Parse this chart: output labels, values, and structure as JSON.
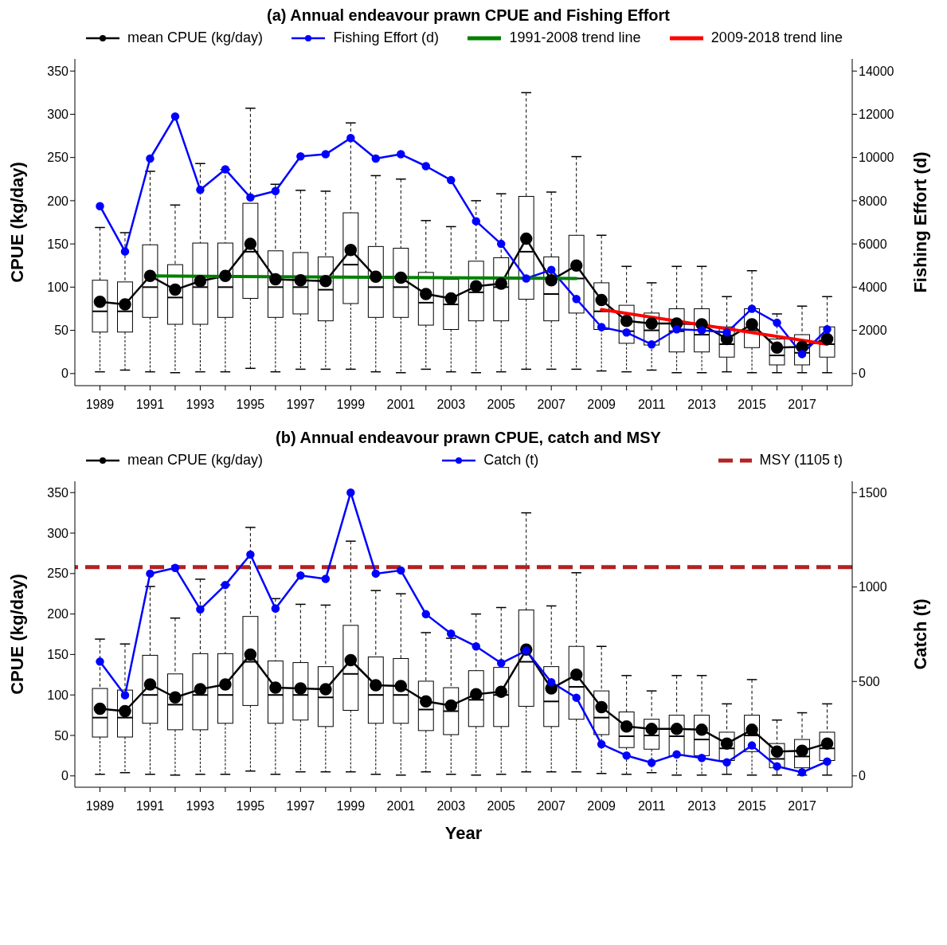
{
  "chart_data": [
    {
      "type": "box",
      "title": "(a) Annual endeavour prawn CPUE and Fishing Effort",
      "ylabel": "CPUE (kg/day)",
      "y2label": "Fishing Effort (d)",
      "x": [
        1989,
        1990,
        1991,
        1992,
        1993,
        1994,
        1995,
        1996,
        1997,
        1998,
        1999,
        2000,
        2001,
        2002,
        2003,
        2004,
        2005,
        2006,
        2007,
        2008,
        2009,
        2010,
        2011,
        2012,
        2013,
        2014,
        2015,
        2016,
        2017,
        2018
      ],
      "xlim": [
        1988,
        2019
      ],
      "xticks": [
        1989,
        {
          "value": 1990,
          "label": null
        },
        1991,
        {
          "value": 1992,
          "label": null
        },
        1993,
        {
          "value": 1994,
          "label": null
        },
        1995,
        {
          "value": 1996,
          "label": null
        },
        1997,
        {
          "value": 1998,
          "label": null
        },
        1999,
        {
          "value": 2000,
          "label": null
        },
        2001,
        {
          "value": 2002,
          "label": null
        },
        2003,
        {
          "value": 2004,
          "label": null
        },
        2005,
        {
          "value": 2006,
          "label": null
        },
        2007,
        {
          "value": 2008,
          "label": null
        },
        2009,
        {
          "value": 2010,
          "label": null
        },
        2011,
        {
          "value": 2012,
          "label": null
        },
        2013,
        {
          "value": 2014,
          "label": null
        },
        2015,
        {
          "value": 2016,
          "label": null
        },
        2017,
        {
          "value": 2018,
          "label": null
        }
      ],
      "ylim": [
        -14,
        364
      ],
      "yticks": [
        0,
        50,
        100,
        150,
        200,
        250,
        300,
        350
      ],
      "y2lim": [
        -560,
        14560
      ],
      "y2ticks": [
        0,
        2000,
        4000,
        6000,
        8000,
        10000,
        12000,
        14000
      ],
      "boxes": [
        {
          "low": 2,
          "q1": 48,
          "median": 72,
          "q3": 108,
          "high": 169
        },
        {
          "low": 4,
          "q1": 48,
          "median": 72,
          "q3": 106,
          "high": 163
        },
        {
          "low": 2,
          "q1": 65,
          "median": 100,
          "q3": 149,
          "high": 234
        },
        {
          "low": 1,
          "q1": 57,
          "median": 88,
          "q3": 126,
          "high": 195
        },
        {
          "low": 2,
          "q1": 57,
          "median": 100,
          "q3": 151,
          "high": 243
        },
        {
          "low": 2,
          "q1": 65,
          "median": 100,
          "q3": 151,
          "high": 236
        },
        {
          "low": 6,
          "q1": 87,
          "median": 141,
          "q3": 197,
          "high": 307
        },
        {
          "low": 2,
          "q1": 65,
          "median": 100,
          "q3": 142,
          "high": 219
        },
        {
          "low": 5,
          "q1": 69,
          "median": 100,
          "q3": 140,
          "high": 212
        },
        {
          "low": 5,
          "q1": 61,
          "median": 97,
          "q3": 135,
          "high": 211
        },
        {
          "low": 5,
          "q1": 81,
          "median": 126,
          "q3": 186,
          "high": 290
        },
        {
          "low": 2,
          "q1": 65,
          "median": 100,
          "q3": 147,
          "high": 229
        },
        {
          "low": 1,
          "q1": 65,
          "median": 100,
          "q3": 145,
          "high": 225
        },
        {
          "low": 5,
          "q1": 56,
          "median": 82,
          "q3": 117,
          "high": 177
        },
        {
          "low": 2,
          "q1": 51,
          "median": 80,
          "q3": 109,
          "high": 170
        },
        {
          "low": 1,
          "q1": 61,
          "median": 94,
          "q3": 130,
          "high": 200
        },
        {
          "low": 2,
          "q1": 61,
          "median": 100,
          "q3": 134,
          "high": 208
        },
        {
          "low": 5,
          "q1": 86,
          "median": 141,
          "q3": 205,
          "high": 325
        },
        {
          "low": 5,
          "q1": 61,
          "median": 92,
          "q3": 135,
          "high": 210
        },
        {
          "low": 5,
          "q1": 70,
          "median": 110,
          "q3": 160,
          "high": 251
        },
        {
          "low": 3,
          "q1": 51,
          "median": 72,
          "q3": 105,
          "high": 160
        },
        {
          "low": 2,
          "q1": 35,
          "median": 49,
          "q3": 79,
          "high": 124
        },
        {
          "low": 4,
          "q1": 33,
          "median": 50,
          "q3": 70,
          "high": 105
        },
        {
          "low": 1,
          "q1": 25,
          "median": 49,
          "q3": 75,
          "high": 124
        },
        {
          "low": 1,
          "q1": 25,
          "median": 45,
          "q3": 75,
          "high": 124
        },
        {
          "low": 2,
          "q1": 19,
          "median": 34,
          "q3": 54,
          "high": 89
        },
        {
          "low": 1,
          "q1": 30,
          "median": 50,
          "q3": 75,
          "high": 119
        },
        {
          "low": 1,
          "q1": 10,
          "median": 21,
          "q3": 40,
          "high": 69
        },
        {
          "low": 1,
          "q1": 10,
          "median": 24,
          "q3": 45,
          "high": 78
        },
        {
          "low": 1,
          "q1": 19,
          "median": 34,
          "q3": 54,
          "high": 89
        }
      ],
      "series": [
        {
          "name": "mean CPUE (kg/day)",
          "type": "line",
          "color": "#000000",
          "marker": "circle",
          "values": [
            83,
            80,
            113,
            97,
            107,
            113,
            150,
            109,
            108,
            107,
            143,
            112,
            111,
            92,
            87,
            101,
            104,
            156,
            108,
            125,
            85,
            61,
            58,
            58,
            57,
            40,
            57,
            30,
            31,
            40
          ]
        },
        {
          "name": "Fishing Effort (d)",
          "type": "line",
          "axis": "y2",
          "color": "#0000ff",
          "marker": "circle",
          "values": [
            7750,
            5650,
            9950,
            11900,
            8500,
            9450,
            8150,
            8450,
            10050,
            10150,
            10900,
            9950,
            10150,
            9600,
            8950,
            7050,
            6000,
            4400,
            4800,
            3450,
            2150,
            1900,
            1350,
            2050,
            2000,
            1900,
            3000,
            2350,
            900,
            2050
          ]
        },
        {
          "name": "1991-2008 trend line",
          "type": "line",
          "color": "#008000",
          "marker": "none",
          "x": [
            1991,
            2008
          ],
          "values": [
            113,
            110
          ]
        },
        {
          "name": "2009-2018 trend line",
          "type": "line",
          "color": "#ff0000",
          "marker": "none",
          "x": [
            2009,
            2018
          ],
          "values": [
            74,
            34
          ]
        }
      ],
      "legend": "top"
    },
    {
      "type": "box",
      "title": "(b) Annual endeavour prawn CPUE, catch and MSY",
      "xlabel": "Year",
      "ylabel": "CPUE (kg/day)",
      "y2label": "Catch (t)",
      "x": [
        1989,
        1990,
        1991,
        1992,
        1993,
        1994,
        1995,
        1996,
        1997,
        1998,
        1999,
        2000,
        2001,
        2002,
        2003,
        2004,
        2005,
        2006,
        2007,
        2008,
        2009,
        2010,
        2011,
        2012,
        2013,
        2014,
        2015,
        2016,
        2017,
        2018
      ],
      "xlim": [
        1988,
        2019
      ],
      "xticks": [
        1989,
        {
          "value": 1990,
          "label": null
        },
        1991,
        {
          "value": 1992,
          "label": null
        },
        1993,
        {
          "value": 1994,
          "label": null
        },
        1995,
        {
          "value": 1996,
          "label": null
        },
        1997,
        {
          "value": 1998,
          "label": null
        },
        1999,
        {
          "value": 2000,
          "label": null
        },
        2001,
        {
          "value": 2002,
          "label": null
        },
        2003,
        {
          "value": 2004,
          "label": null
        },
        2005,
        {
          "value": 2006,
          "label": null
        },
        2007,
        {
          "value": 2008,
          "label": null
        },
        2009,
        {
          "value": 2010,
          "label": null
        },
        2011,
        {
          "value": 2012,
          "label": null
        },
        2013,
        {
          "value": 2014,
          "label": null
        },
        2015,
        {
          "value": 2016,
          "label": null
        },
        2017,
        {
          "value": 2018,
          "label": null
        }
      ],
      "ylim": [
        -14,
        364
      ],
      "yticks": [
        0,
        50,
        100,
        150,
        200,
        250,
        300,
        350
      ],
      "y2lim": [
        -60,
        1560
      ],
      "y2ticks": [
        0,
        500,
        1000,
        1500
      ],
      "boxes": [
        {
          "low": 2,
          "q1": 48,
          "median": 72,
          "q3": 108,
          "high": 169
        },
        {
          "low": 4,
          "q1": 48,
          "median": 72,
          "q3": 106,
          "high": 163
        },
        {
          "low": 2,
          "q1": 65,
          "median": 100,
          "q3": 149,
          "high": 234
        },
        {
          "low": 1,
          "q1": 57,
          "median": 88,
          "q3": 126,
          "high": 195
        },
        {
          "low": 2,
          "q1": 57,
          "median": 100,
          "q3": 151,
          "high": 243
        },
        {
          "low": 2,
          "q1": 65,
          "median": 100,
          "q3": 151,
          "high": 236
        },
        {
          "low": 6,
          "q1": 87,
          "median": 141,
          "q3": 197,
          "high": 307
        },
        {
          "low": 2,
          "q1": 65,
          "median": 100,
          "q3": 142,
          "high": 219
        },
        {
          "low": 5,
          "q1": 69,
          "median": 100,
          "q3": 140,
          "high": 212
        },
        {
          "low": 5,
          "q1": 61,
          "median": 97,
          "q3": 135,
          "high": 211
        },
        {
          "low": 5,
          "q1": 81,
          "median": 126,
          "q3": 186,
          "high": 290
        },
        {
          "low": 2,
          "q1": 65,
          "median": 100,
          "q3": 147,
          "high": 229
        },
        {
          "low": 1,
          "q1": 65,
          "median": 100,
          "q3": 145,
          "high": 225
        },
        {
          "low": 5,
          "q1": 56,
          "median": 82,
          "q3": 117,
          "high": 177
        },
        {
          "low": 2,
          "q1": 51,
          "median": 80,
          "q3": 109,
          "high": 170
        },
        {
          "low": 1,
          "q1": 61,
          "median": 94,
          "q3": 130,
          "high": 200
        },
        {
          "low": 2,
          "q1": 61,
          "median": 100,
          "q3": 134,
          "high": 208
        },
        {
          "low": 5,
          "q1": 86,
          "median": 141,
          "q3": 205,
          "high": 325
        },
        {
          "low": 5,
          "q1": 61,
          "median": 92,
          "q3": 135,
          "high": 210
        },
        {
          "low": 5,
          "q1": 70,
          "median": 110,
          "q3": 160,
          "high": 251
        },
        {
          "low": 3,
          "q1": 51,
          "median": 72,
          "q3": 105,
          "high": 160
        },
        {
          "low": 2,
          "q1": 35,
          "median": 49,
          "q3": 79,
          "high": 124
        },
        {
          "low": 4,
          "q1": 33,
          "median": 50,
          "q3": 70,
          "high": 105
        },
        {
          "low": 1,
          "q1": 25,
          "median": 49,
          "q3": 75,
          "high": 124
        },
        {
          "low": 1,
          "q1": 25,
          "median": 45,
          "q3": 75,
          "high": 124
        },
        {
          "low": 2,
          "q1": 19,
          "median": 34,
          "q3": 54,
          "high": 89
        },
        {
          "low": 1,
          "q1": 30,
          "median": 50,
          "q3": 75,
          "high": 119
        },
        {
          "low": 1,
          "q1": 10,
          "median": 21,
          "q3": 40,
          "high": 69
        },
        {
          "low": 1,
          "q1": 10,
          "median": 24,
          "q3": 45,
          "high": 78
        },
        {
          "low": 1,
          "q1": 19,
          "median": 34,
          "q3": 54,
          "high": 89
        }
      ],
      "series": [
        {
          "name": "mean CPUE (kg/day)",
          "type": "line",
          "color": "#000000",
          "marker": "circle",
          "values": [
            83,
            80,
            113,
            97,
            107,
            113,
            150,
            109,
            108,
            107,
            143,
            112,
            111,
            92,
            87,
            101,
            104,
            156,
            108,
            125,
            85,
            61,
            58,
            58,
            57,
            40,
            57,
            30,
            31,
            40
          ]
        },
        {
          "name": "Catch (t)",
          "type": "line",
          "axis": "y2",
          "color": "#0000ff",
          "marker": "circle",
          "values": [
            605,
            427,
            1071,
            1101,
            882,
            1011,
            1172,
            886,
            1061,
            1043,
            1500,
            1071,
            1088,
            856,
            753,
            686,
            597,
            663,
            496,
            414,
            168,
            108,
            70,
            114,
            95,
            72,
            161,
            51,
            19,
            76
          ]
        }
      ],
      "ref_lines": [
        {
          "axis": "y2",
          "value": 1105,
          "label": "MSY (1105 t)",
          "color": "#b22222",
          "line_style": "dashed"
        }
      ],
      "legend": "top"
    }
  ]
}
